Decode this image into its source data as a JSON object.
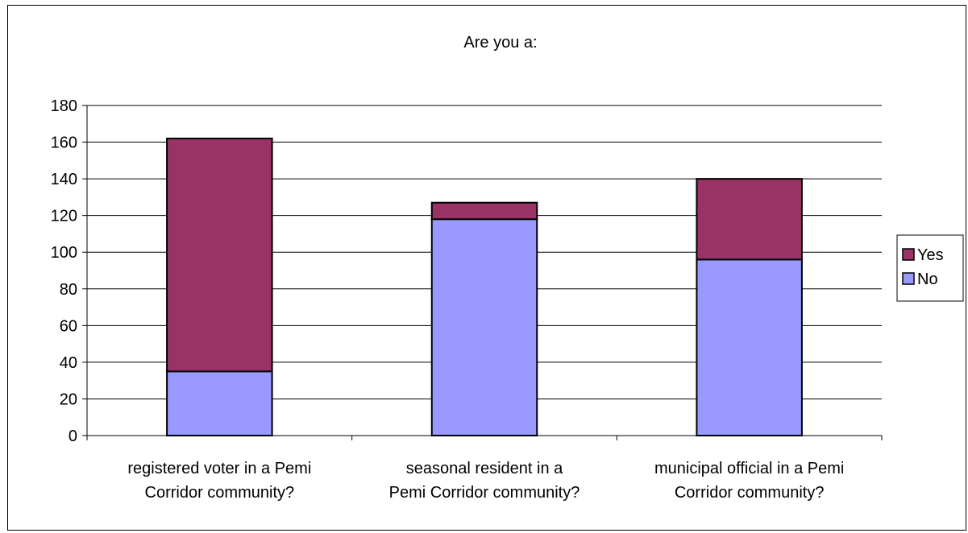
{
  "chart_data": {
    "type": "bar",
    "stacked": true,
    "title": "Are you a:",
    "xlabel": "",
    "ylabel": "",
    "ylim": [
      0,
      180
    ],
    "yticks": [
      0,
      20,
      40,
      60,
      80,
      100,
      120,
      140,
      160,
      180
    ],
    "grid": true,
    "legend_position": "right",
    "categories": [
      [
        "registered voter in a Pemi",
        "Corridor community?"
      ],
      [
        "seasonal resident in a",
        "Pemi Corridor community?"
      ],
      [
        "municipal official in a Pemi",
        "Corridor community?"
      ]
    ],
    "series": [
      {
        "name": "No",
        "color": "#9999ff",
        "values": [
          35,
          118,
          96
        ]
      },
      {
        "name": "Yes",
        "color": "#993366",
        "values": [
          127,
          9,
          44
        ]
      }
    ],
    "legend_order": [
      "Yes",
      "No"
    ]
  }
}
